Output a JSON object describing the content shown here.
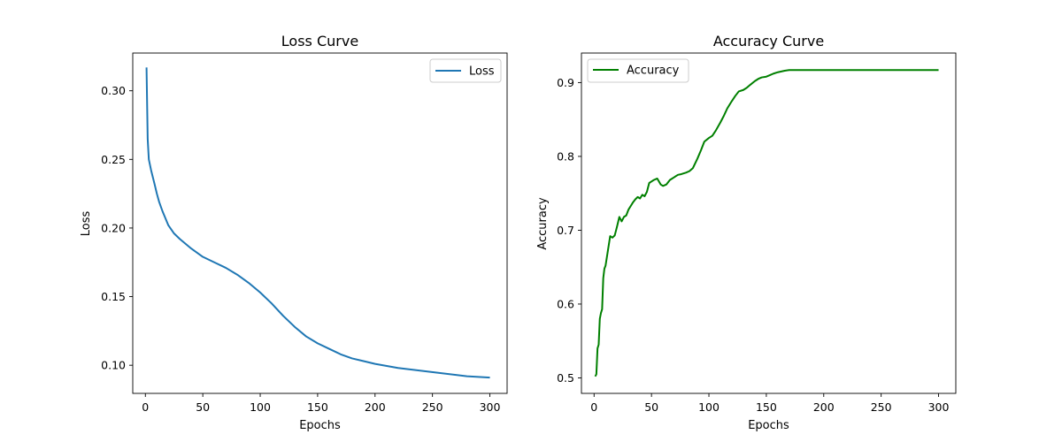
{
  "chart_data": [
    {
      "type": "line",
      "title": "Loss Curve",
      "xlabel": "Epochs",
      "ylabel": "Loss",
      "xlim": [
        -11,
        315
      ],
      "ylim": [
        0.0795,
        0.3275
      ],
      "xticks": [
        0,
        50,
        100,
        150,
        200,
        250,
        300
      ],
      "yticks": [
        0.1,
        0.15,
        0.2,
        0.25,
        0.3
      ],
      "ytick_format": 2,
      "grid": false,
      "legend": "top-right",
      "series": [
        {
          "name": "Loss",
          "color": "#1f77b4",
          "x": [
            1,
            2,
            3,
            5,
            8,
            10,
            12,
            15,
            18,
            20,
            25,
            30,
            40,
            50,
            60,
            70,
            80,
            90,
            100,
            110,
            120,
            130,
            140,
            150,
            160,
            170,
            180,
            190,
            200,
            220,
            240,
            260,
            280,
            300
          ],
          "y": [
            0.317,
            0.265,
            0.25,
            0.242,
            0.232,
            0.225,
            0.219,
            0.212,
            0.206,
            0.202,
            0.196,
            0.192,
            0.185,
            0.179,
            0.175,
            0.171,
            0.166,
            0.16,
            0.153,
            0.145,
            0.136,
            0.128,
            0.121,
            0.116,
            0.112,
            0.108,
            0.105,
            0.103,
            0.101,
            0.098,
            0.096,
            0.094,
            0.092,
            0.091
          ]
        }
      ]
    },
    {
      "type": "line",
      "title": "Accuracy Curve",
      "xlabel": "Epochs",
      "ylabel": "Accuracy",
      "xlim": [
        -11,
        315
      ],
      "ylim": [
        0.479,
        0.94
      ],
      "xticks": [
        0,
        50,
        100,
        150,
        200,
        250,
        300
      ],
      "yticks": [
        0.5,
        0.6,
        0.7,
        0.8,
        0.9
      ],
      "ytick_format": 1,
      "grid": false,
      "legend": "top-left",
      "series": [
        {
          "name": "Accuracy",
          "color": "#008000",
          "x": [
            1,
            2,
            3,
            4,
            5,
            6,
            7,
            8,
            9,
            10,
            12,
            14,
            16,
            18,
            20,
            22,
            24,
            26,
            28,
            30,
            32,
            34,
            36,
            38,
            40,
            42,
            44,
            46,
            48,
            50,
            52,
            55,
            58,
            60,
            63,
            66,
            70,
            73,
            76,
            80,
            83,
            86,
            90,
            93,
            96,
            100,
            103,
            106,
            110,
            113,
            116,
            120,
            123,
            126,
            130,
            133,
            136,
            140,
            143,
            146,
            150,
            153,
            156,
            160,
            163,
            166,
            170,
            175,
            180,
            200,
            250,
            300
          ],
          "y": [
            0.502,
            0.505,
            0.54,
            0.545,
            0.58,
            0.588,
            0.593,
            0.635,
            0.648,
            0.652,
            0.672,
            0.692,
            0.69,
            0.693,
            0.705,
            0.718,
            0.712,
            0.718,
            0.72,
            0.728,
            0.733,
            0.738,
            0.742,
            0.745,
            0.743,
            0.748,
            0.746,
            0.752,
            0.764,
            0.766,
            0.768,
            0.77,
            0.762,
            0.76,
            0.762,
            0.768,
            0.772,
            0.775,
            0.776,
            0.778,
            0.78,
            0.784,
            0.797,
            0.808,
            0.82,
            0.825,
            0.828,
            0.835,
            0.846,
            0.855,
            0.865,
            0.875,
            0.882,
            0.888,
            0.89,
            0.893,
            0.897,
            0.902,
            0.905,
            0.907,
            0.908,
            0.91,
            0.912,
            0.914,
            0.915,
            0.916,
            0.917,
            0.917,
            0.917,
            0.917,
            0.917,
            0.917
          ]
        }
      ]
    }
  ]
}
